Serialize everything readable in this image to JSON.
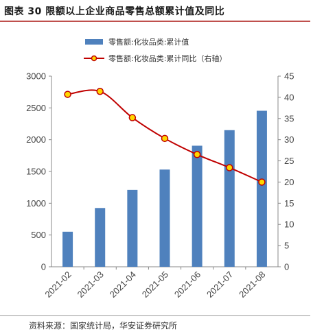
{
  "header": {
    "title": "图表 30  限额以上企业商品零售总额累计值及同比"
  },
  "footer": {
    "source": "资料来源：国家统计局，华安证券研究所"
  },
  "colors": {
    "bar": "#4f81bd",
    "line": "#c00000",
    "marker_fill": "#ffd700",
    "title_rule": "#c0504d"
  },
  "chart_data": {
    "type": "bar",
    "categories": [
      "2021-02",
      "2021-03",
      "2021-04",
      "2021-05",
      "2021-06",
      "2021-07",
      "2021-08"
    ],
    "series": [
      {
        "name": "零售额:化妆品类:累计值",
        "type": "bar",
        "axis": "left",
        "values": [
          552,
          925,
          1210,
          1530,
          1905,
          2150,
          2455
        ]
      },
      {
        "name": "零售额:化妆品类:累计同比（右轴）",
        "type": "line",
        "axis": "right",
        "values": [
          40.7,
          41.4,
          35.2,
          30.3,
          26.5,
          23.4,
          20.0
        ]
      }
    ],
    "ylim": [
      0,
      3000
    ],
    "y_ticks": [
      0,
      500,
      1000,
      1500,
      2000,
      2500,
      3000
    ],
    "y2lim": [
      0,
      45
    ],
    "y2_ticks": [
      0,
      5,
      10,
      15,
      20,
      25,
      30,
      35,
      40,
      45
    ],
    "legend_position": "top",
    "grid": false
  }
}
